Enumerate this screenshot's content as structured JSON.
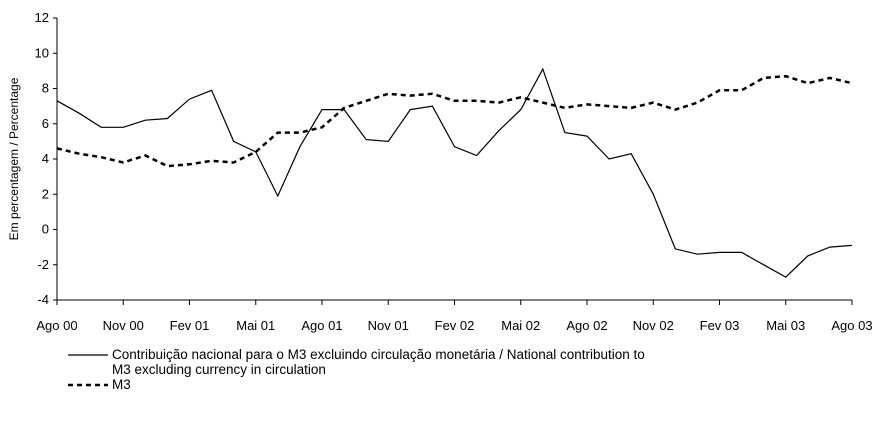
{
  "chart_data": {
    "type": "line",
    "y_label": "Em percentagem / Percentage",
    "categories": [
      "Ago 00",
      null,
      null,
      "Nov 00",
      null,
      null,
      "Fev 01",
      null,
      null,
      "Mai 01",
      null,
      null,
      "Ago 01",
      null,
      null,
      "Nov 01",
      null,
      null,
      "Fev 02",
      null,
      null,
      "Mai 02",
      null,
      null,
      "Ago 02",
      null,
      null,
      "Nov 02",
      null,
      null,
      "Fev 03",
      null,
      null,
      "Mai 03",
      null,
      null,
      "Ago 03"
    ],
    "series": [
      {
        "name": "Contribuição nacional para o M3 excluindo circulação monetária / National contribution to M3 excluding currency in circulation",
        "color": "#000000",
        "dash": "solid",
        "values": [
          7.3,
          6.6,
          5.8,
          5.8,
          6.2,
          6.3,
          7.4,
          7.9,
          5.0,
          4.4,
          1.9,
          4.7,
          6.8,
          6.8,
          5.1,
          5.0,
          6.8,
          7.0,
          4.7,
          4.2,
          5.6,
          6.8,
          9.1,
          5.5,
          5.3,
          4.0,
          4.3,
          2.0,
          -1.1,
          -1.4,
          -1.3,
          -1.3,
          -2.0,
          -2.7,
          -1.5,
          -1.0,
          -0.9
        ]
      },
      {
        "name": "M3",
        "color": "#000000",
        "dash": "dashed",
        "values": [
          4.6,
          4.3,
          4.1,
          3.8,
          4.2,
          3.6,
          3.7,
          3.9,
          3.8,
          4.4,
          5.5,
          5.5,
          5.8,
          6.9,
          7.3,
          7.7,
          7.6,
          7.7,
          7.3,
          7.3,
          7.2,
          7.5,
          7.2,
          6.9,
          7.1,
          7.0,
          6.9,
          7.2,
          6.8,
          7.2,
          7.9,
          7.9,
          8.6,
          8.7,
          8.3,
          8.6,
          8.3
        ]
      }
    ],
    "ylim": [
      -4,
      12
    ],
    "yticks": [
      -4,
      -2,
      0,
      2,
      4,
      6,
      8,
      10,
      12
    ],
    "grid": false
  }
}
